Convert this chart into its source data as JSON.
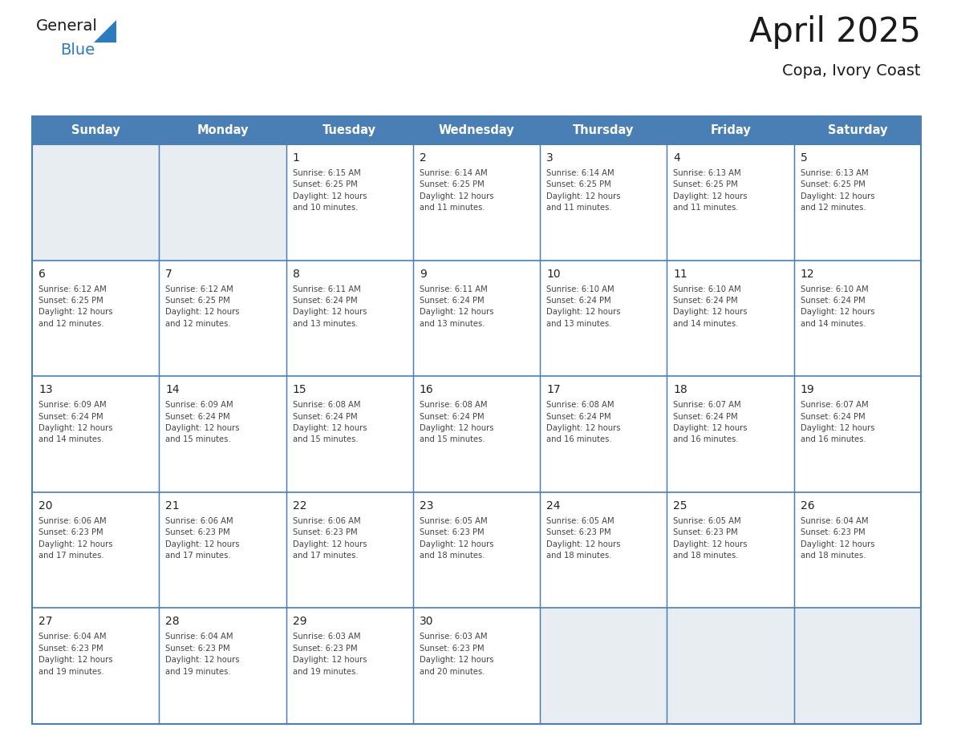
{
  "title": "April 2025",
  "subtitle": "Copa, Ivory Coast",
  "days_of_week": [
    "Sunday",
    "Monday",
    "Tuesday",
    "Wednesday",
    "Thursday",
    "Friday",
    "Saturday"
  ],
  "header_bg": "#4a7fb5",
  "header_text": "#ffffff",
  "cell_bg_empty": "#e8edf2",
  "cell_bg_filled": "#ffffff",
  "border_color": "#4a7fb5",
  "text_color": "#444444",
  "day_num_color": "#222222",
  "logo_general_color": "#1a1a1a",
  "logo_blue_color": "#2a7bbf",
  "title_color": "#1a1a1a",
  "weeks": [
    [
      {
        "day": null,
        "info": null
      },
      {
        "day": null,
        "info": null
      },
      {
        "day": 1,
        "info": "Sunrise: 6:15 AM\nSunset: 6:25 PM\nDaylight: 12 hours\nand 10 minutes."
      },
      {
        "day": 2,
        "info": "Sunrise: 6:14 AM\nSunset: 6:25 PM\nDaylight: 12 hours\nand 11 minutes."
      },
      {
        "day": 3,
        "info": "Sunrise: 6:14 AM\nSunset: 6:25 PM\nDaylight: 12 hours\nand 11 minutes."
      },
      {
        "day": 4,
        "info": "Sunrise: 6:13 AM\nSunset: 6:25 PM\nDaylight: 12 hours\nand 11 minutes."
      },
      {
        "day": 5,
        "info": "Sunrise: 6:13 AM\nSunset: 6:25 PM\nDaylight: 12 hours\nand 12 minutes."
      }
    ],
    [
      {
        "day": 6,
        "info": "Sunrise: 6:12 AM\nSunset: 6:25 PM\nDaylight: 12 hours\nand 12 minutes."
      },
      {
        "day": 7,
        "info": "Sunrise: 6:12 AM\nSunset: 6:25 PM\nDaylight: 12 hours\nand 12 minutes."
      },
      {
        "day": 8,
        "info": "Sunrise: 6:11 AM\nSunset: 6:24 PM\nDaylight: 12 hours\nand 13 minutes."
      },
      {
        "day": 9,
        "info": "Sunrise: 6:11 AM\nSunset: 6:24 PM\nDaylight: 12 hours\nand 13 minutes."
      },
      {
        "day": 10,
        "info": "Sunrise: 6:10 AM\nSunset: 6:24 PM\nDaylight: 12 hours\nand 13 minutes."
      },
      {
        "day": 11,
        "info": "Sunrise: 6:10 AM\nSunset: 6:24 PM\nDaylight: 12 hours\nand 14 minutes."
      },
      {
        "day": 12,
        "info": "Sunrise: 6:10 AM\nSunset: 6:24 PM\nDaylight: 12 hours\nand 14 minutes."
      }
    ],
    [
      {
        "day": 13,
        "info": "Sunrise: 6:09 AM\nSunset: 6:24 PM\nDaylight: 12 hours\nand 14 minutes."
      },
      {
        "day": 14,
        "info": "Sunrise: 6:09 AM\nSunset: 6:24 PM\nDaylight: 12 hours\nand 15 minutes."
      },
      {
        "day": 15,
        "info": "Sunrise: 6:08 AM\nSunset: 6:24 PM\nDaylight: 12 hours\nand 15 minutes."
      },
      {
        "day": 16,
        "info": "Sunrise: 6:08 AM\nSunset: 6:24 PM\nDaylight: 12 hours\nand 15 minutes."
      },
      {
        "day": 17,
        "info": "Sunrise: 6:08 AM\nSunset: 6:24 PM\nDaylight: 12 hours\nand 16 minutes."
      },
      {
        "day": 18,
        "info": "Sunrise: 6:07 AM\nSunset: 6:24 PM\nDaylight: 12 hours\nand 16 minutes."
      },
      {
        "day": 19,
        "info": "Sunrise: 6:07 AM\nSunset: 6:24 PM\nDaylight: 12 hours\nand 16 minutes."
      }
    ],
    [
      {
        "day": 20,
        "info": "Sunrise: 6:06 AM\nSunset: 6:23 PM\nDaylight: 12 hours\nand 17 minutes."
      },
      {
        "day": 21,
        "info": "Sunrise: 6:06 AM\nSunset: 6:23 PM\nDaylight: 12 hours\nand 17 minutes."
      },
      {
        "day": 22,
        "info": "Sunrise: 6:06 AM\nSunset: 6:23 PM\nDaylight: 12 hours\nand 17 minutes."
      },
      {
        "day": 23,
        "info": "Sunrise: 6:05 AM\nSunset: 6:23 PM\nDaylight: 12 hours\nand 18 minutes."
      },
      {
        "day": 24,
        "info": "Sunrise: 6:05 AM\nSunset: 6:23 PM\nDaylight: 12 hours\nand 18 minutes."
      },
      {
        "day": 25,
        "info": "Sunrise: 6:05 AM\nSunset: 6:23 PM\nDaylight: 12 hours\nand 18 minutes."
      },
      {
        "day": 26,
        "info": "Sunrise: 6:04 AM\nSunset: 6:23 PM\nDaylight: 12 hours\nand 18 minutes."
      }
    ],
    [
      {
        "day": 27,
        "info": "Sunrise: 6:04 AM\nSunset: 6:23 PM\nDaylight: 12 hours\nand 19 minutes."
      },
      {
        "day": 28,
        "info": "Sunrise: 6:04 AM\nSunset: 6:23 PM\nDaylight: 12 hours\nand 19 minutes."
      },
      {
        "day": 29,
        "info": "Sunrise: 6:03 AM\nSunset: 6:23 PM\nDaylight: 12 hours\nand 19 minutes."
      },
      {
        "day": 30,
        "info": "Sunrise: 6:03 AM\nSunset: 6:23 PM\nDaylight: 12 hours\nand 20 minutes."
      },
      {
        "day": null,
        "info": null
      },
      {
        "day": null,
        "info": null
      },
      {
        "day": null,
        "info": null
      }
    ]
  ]
}
